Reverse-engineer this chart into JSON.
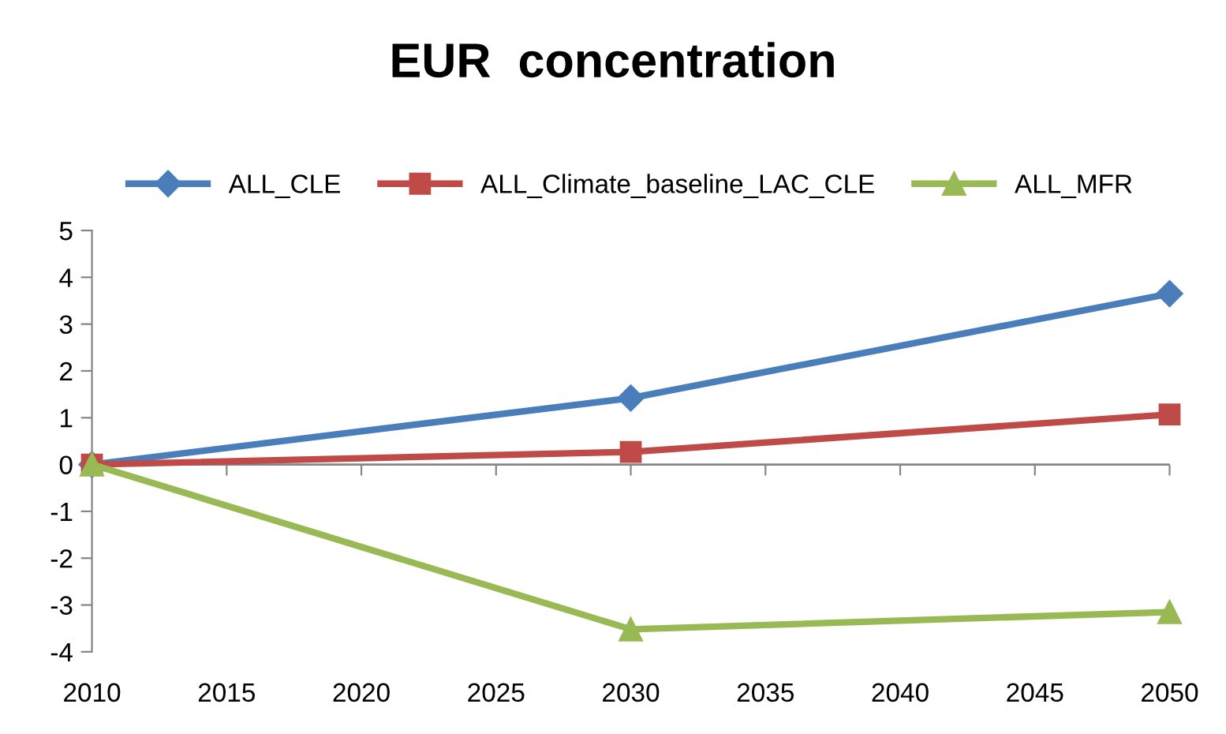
{
  "chart_data": {
    "type": "line",
    "title": "EUR  concentration",
    "x": [
      2010,
      2030,
      2050
    ],
    "xlim": [
      2010,
      2050
    ],
    "xticks": [
      2010,
      2015,
      2020,
      2025,
      2030,
      2035,
      2040,
      2045,
      2050
    ],
    "ylim": [
      -4,
      5
    ],
    "yticks": [
      -4,
      -3,
      -2,
      -1,
      0,
      1,
      2,
      3,
      4,
      5
    ],
    "grid": false,
    "ref_lines": [
      {
        "axis": "y",
        "value": 0,
        "color": "#868686"
      }
    ],
    "legend": "top",
    "line_style": "solid",
    "series": [
      {
        "name": "ALL_CLE",
        "color": "#4a7ebb",
        "marker": "diamond",
        "values": [
          0,
          1.42,
          3.65
        ]
      },
      {
        "name": "ALL_Climate_baseline_LAC_CLE",
        "color": "#be4b48",
        "marker": "square",
        "values": [
          0,
          0.27,
          1.07
        ]
      },
      {
        "name": "ALL_MFR",
        "color": "#98b954",
        "marker": "triangle",
        "values": [
          0,
          -3.52,
          -3.15
        ]
      }
    ]
  }
}
